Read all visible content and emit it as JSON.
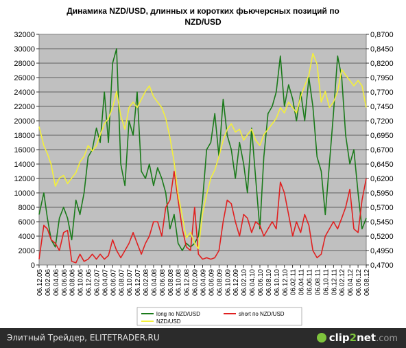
{
  "chart_data": {
    "type": "line",
    "title": "Динамика NZD/USD, длинных и коротких фьючерсных позиций по NZD/USD",
    "title_lines": [
      "Динамика NZD/USD, длинных и коротких фьючерсных позиций по",
      "NZD/USD"
    ],
    "plot_background": "#c0c0c0",
    "grid": true,
    "legend_placement": "bottom",
    "y_left": {
      "min": 0,
      "max": 32000,
      "ticks": [
        "0",
        "2000",
        "4000",
        "6000",
        "8000",
        "10000",
        "12000",
        "14000",
        "16000",
        "18000",
        "20000",
        "22000",
        "24000",
        "26000",
        "28000",
        "30000",
        "32000"
      ]
    },
    "y_right": {
      "min": 0.47,
      "max": 0.895,
      "ticks": [
        "0,4700",
        "0,4950",
        "0,5200",
        "0,5450",
        "0,5700",
        "0,5950",
        "0,6200",
        "0,6450",
        "0,6700",
        "0,6950",
        "0,7200",
        "0,7450",
        "0,7700",
        "0,7950",
        "0,8200",
        "0,8450",
        "0,8700"
      ]
    },
    "x_ticks": [
      "06.12.05",
      "06.02.06",
      "06.04.06",
      "06.06.06",
      "06.08.06",
      "06.10.06",
      "06.12.06",
      "06.02.07",
      "06.04.07",
      "06.06.07",
      "06.08.07",
      "06.10.07",
      "06.12.07",
      "06.02.08",
      "06.04.08",
      "06.06.08",
      "06.08.08",
      "06.10.08",
      "06.12.08",
      "06.02.09",
      "06.04.09",
      "06.06.09",
      "06.08.09",
      "06.10.09",
      "06.12.09",
      "06.02.10",
      "06.04.10",
      "06.06.10",
      "06.08.10",
      "06.10.10",
      "06.12.10",
      "06.02.11",
      "06.04.11",
      "06.06.11",
      "06.08.11",
      "06.10.11",
      "06.12.11",
      "06.02.12",
      "06.04.12",
      "06.06.12",
      "06.08.12"
    ],
    "x_range": [
      "2005-12-06",
      "2012-08-06"
    ],
    "series": [
      {
        "name": "long по NZD/USD",
        "axis": "left",
        "color": "#1a7a1a",
        "points": [
          [
            "2005-12-06",
            7000
          ],
          [
            "2006-01-10",
            10000
          ],
          [
            "2006-02-06",
            6500
          ],
          [
            "2006-03-06",
            3500
          ],
          [
            "2006-04-06",
            2500
          ],
          [
            "2006-05-06",
            6500
          ],
          [
            "2006-06-06",
            8000
          ],
          [
            "2006-07-06",
            6500
          ],
          [
            "2006-08-06",
            3500
          ],
          [
            "2006-09-06",
            9000
          ],
          [
            "2006-10-06",
            7000
          ],
          [
            "2006-11-06",
            10000
          ],
          [
            "2006-12-06",
            15000
          ],
          [
            "2007-01-06",
            16000
          ],
          [
            "2007-02-06",
            19000
          ],
          [
            "2007-03-06",
            17000
          ],
          [
            "2007-04-06",
            24000
          ],
          [
            "2007-05-06",
            17000
          ],
          [
            "2007-06-06",
            28000
          ],
          [
            "2007-07-06",
            30000
          ],
          [
            "2007-08-06",
            14000
          ],
          [
            "2007-09-06",
            11000
          ],
          [
            "2007-10-06",
            20000
          ],
          [
            "2007-11-06",
            18000
          ],
          [
            "2007-12-06",
            24000
          ],
          [
            "2008-01-06",
            13000
          ],
          [
            "2008-02-06",
            12000
          ],
          [
            "2008-03-06",
            14000
          ],
          [
            "2008-04-06",
            11000
          ],
          [
            "2008-05-06",
            13500
          ],
          [
            "2008-06-06",
            12000
          ],
          [
            "2008-07-06",
            10000
          ],
          [
            "2008-08-06",
            5000
          ],
          [
            "2008-09-06",
            7000
          ],
          [
            "2008-10-06",
            3000
          ],
          [
            "2008-11-06",
            2000
          ],
          [
            "2008-12-06",
            3000
          ],
          [
            "2009-01-06",
            2500
          ],
          [
            "2009-02-06",
            3000
          ],
          [
            "2009-03-06",
            4000
          ],
          [
            "2009-04-06",
            9000
          ],
          [
            "2009-05-06",
            16000
          ],
          [
            "2009-06-06",
            17000
          ],
          [
            "2009-07-06",
            21000
          ],
          [
            "2009-08-06",
            15000
          ],
          [
            "2009-09-06",
            23000
          ],
          [
            "2009-10-06",
            18000
          ],
          [
            "2009-11-06",
            16000
          ],
          [
            "2009-12-06",
            12000
          ],
          [
            "2010-01-06",
            17000
          ],
          [
            "2010-02-06",
            14000
          ],
          [
            "2010-03-06",
            10000
          ],
          [
            "2010-04-06",
            19000
          ],
          [
            "2010-05-06",
            12000
          ],
          [
            "2010-06-06",
            5000
          ],
          [
            "2010-07-06",
            15000
          ],
          [
            "2010-08-06",
            21000
          ],
          [
            "2010-09-06",
            22000
          ],
          [
            "2010-10-06",
            24000
          ],
          [
            "2010-11-06",
            29000
          ],
          [
            "2010-12-06",
            22000
          ],
          [
            "2011-01-06",
            25000
          ],
          [
            "2011-02-06",
            23000
          ],
          [
            "2011-03-06",
            20000
          ],
          [
            "2011-04-06",
            24000
          ],
          [
            "2011-05-06",
            20000
          ],
          [
            "2011-06-06",
            26000
          ],
          [
            "2011-07-06",
            22000
          ],
          [
            "2011-08-06",
            15000
          ],
          [
            "2011-09-06",
            13000
          ],
          [
            "2011-10-06",
            7000
          ],
          [
            "2011-11-06",
            14000
          ],
          [
            "2011-12-06",
            21000
          ],
          [
            "2012-01-06",
            29000
          ],
          [
            "2012-02-06",
            26000
          ],
          [
            "2012-03-06",
            18000
          ],
          [
            "2012-04-06",
            14000
          ],
          [
            "2012-05-06",
            16000
          ],
          [
            "2012-06-06",
            10000
          ],
          [
            "2012-07-06",
            5000
          ],
          [
            "2012-08-06",
            6500
          ]
        ]
      },
      {
        "name": "short по NZD/USD",
        "axis": "left",
        "color": "#e02020",
        "points": [
          [
            "2005-12-06",
            800
          ],
          [
            "2006-01-10",
            5500
          ],
          [
            "2006-02-06",
            5000
          ],
          [
            "2006-03-06",
            3500
          ],
          [
            "2006-04-06",
            3000
          ],
          [
            "2006-05-06",
            2000
          ],
          [
            "2006-06-06",
            4500
          ],
          [
            "2006-07-06",
            4800
          ],
          [
            "2006-08-06",
            500
          ],
          [
            "2006-09-06",
            300
          ],
          [
            "2006-10-06",
            1500
          ],
          [
            "2006-11-06",
            500
          ],
          [
            "2006-12-06",
            800
          ],
          [
            "2007-01-06",
            1500
          ],
          [
            "2007-02-06",
            800
          ],
          [
            "2007-03-06",
            1500
          ],
          [
            "2007-04-06",
            800
          ],
          [
            "2007-05-06",
            1300
          ],
          [
            "2007-06-06",
            3500
          ],
          [
            "2007-07-06",
            2000
          ],
          [
            "2007-08-06",
            1000
          ],
          [
            "2007-09-06",
            2000
          ],
          [
            "2007-10-06",
            3000
          ],
          [
            "2007-11-06",
            4500
          ],
          [
            "2007-12-06",
            3000
          ],
          [
            "2008-01-06",
            1500
          ],
          [
            "2008-02-06",
            3000
          ],
          [
            "2008-03-06",
            4000
          ],
          [
            "2008-04-06",
            6000
          ],
          [
            "2008-05-06",
            6000
          ],
          [
            "2008-06-06",
            4000
          ],
          [
            "2008-07-06",
            8000
          ],
          [
            "2008-08-06",
            9000
          ],
          [
            "2008-09-06",
            13000
          ],
          [
            "2008-10-06",
            9000
          ],
          [
            "2008-11-06",
            5000
          ],
          [
            "2008-12-06",
            2500
          ],
          [
            "2009-01-06",
            2000
          ],
          [
            "2009-02-06",
            8000
          ],
          [
            "2009-03-06",
            1500
          ],
          [
            "2009-04-06",
            800
          ],
          [
            "2009-05-06",
            1000
          ],
          [
            "2009-06-06",
            800
          ],
          [
            "2009-07-06",
            1000
          ],
          [
            "2009-08-06",
            2000
          ],
          [
            "2009-09-06",
            6000
          ],
          [
            "2009-10-06",
            9000
          ],
          [
            "2009-11-06",
            8500
          ],
          [
            "2009-12-06",
            6000
          ],
          [
            "2010-01-06",
            4000
          ],
          [
            "2010-02-06",
            7000
          ],
          [
            "2010-03-06",
            6500
          ],
          [
            "2010-04-06",
            4500
          ],
          [
            "2010-05-06",
            6000
          ],
          [
            "2010-06-06",
            5500
          ],
          [
            "2010-07-06",
            4000
          ],
          [
            "2010-08-06",
            5000
          ],
          [
            "2010-09-06",
            6000
          ],
          [
            "2010-10-06",
            5000
          ],
          [
            "2010-11-06",
            11500
          ],
          [
            "2010-12-06",
            10000
          ],
          [
            "2011-01-06",
            7000
          ],
          [
            "2011-02-06",
            4000
          ],
          [
            "2011-03-06",
            6000
          ],
          [
            "2011-04-06",
            4500
          ],
          [
            "2011-05-06",
            7000
          ],
          [
            "2011-06-06",
            5500
          ],
          [
            "2011-07-06",
            2000
          ],
          [
            "2011-08-06",
            1000
          ],
          [
            "2011-09-06",
            1500
          ],
          [
            "2011-10-06",
            4000
          ],
          [
            "2011-11-06",
            5000
          ],
          [
            "2011-12-06",
            6000
          ],
          [
            "2012-01-06",
            5000
          ],
          [
            "2012-02-06",
            6500
          ],
          [
            "2012-03-06",
            8000
          ],
          [
            "2012-04-06",
            10500
          ],
          [
            "2012-05-06",
            5000
          ],
          [
            "2012-06-06",
            4500
          ],
          [
            "2012-07-06",
            9000
          ],
          [
            "2012-08-06",
            12000
          ]
        ]
      },
      {
        "name": "NZD/USD",
        "axis": "right",
        "color": "#f4f03a",
        "points": [
          [
            "2005-12-06",
            0.725
          ],
          [
            "2006-01-10",
            0.69
          ],
          [
            "2006-02-06",
            0.675
          ],
          [
            "2006-03-06",
            0.655
          ],
          [
            "2006-04-06",
            0.615
          ],
          [
            "2006-05-06",
            0.63
          ],
          [
            "2006-06-06",
            0.635
          ],
          [
            "2006-07-06",
            0.62
          ],
          [
            "2006-08-06",
            0.63
          ],
          [
            "2006-09-06",
            0.64
          ],
          [
            "2006-10-06",
            0.66
          ],
          [
            "2006-11-06",
            0.67
          ],
          [
            "2006-12-06",
            0.69
          ],
          [
            "2007-01-06",
            0.68
          ],
          [
            "2007-02-06",
            0.69
          ],
          [
            "2007-03-06",
            0.71
          ],
          [
            "2007-04-06",
            0.73
          ],
          [
            "2007-05-06",
            0.74
          ],
          [
            "2007-06-06",
            0.76
          ],
          [
            "2007-07-06",
            0.79
          ],
          [
            "2007-08-06",
            0.745
          ],
          [
            "2007-09-06",
            0.72
          ],
          [
            "2007-10-06",
            0.76
          ],
          [
            "2007-11-06",
            0.77
          ],
          [
            "2007-12-06",
            0.76
          ],
          [
            "2008-01-06",
            0.775
          ],
          [
            "2008-02-06",
            0.79
          ],
          [
            "2008-03-06",
            0.8
          ],
          [
            "2008-04-06",
            0.78
          ],
          [
            "2008-05-06",
            0.77
          ],
          [
            "2008-06-06",
            0.76
          ],
          [
            "2008-07-06",
            0.74
          ],
          [
            "2008-08-06",
            0.705
          ],
          [
            "2008-09-06",
            0.66
          ],
          [
            "2008-10-06",
            0.6
          ],
          [
            "2008-11-06",
            0.56
          ],
          [
            "2008-12-06",
            0.52
          ],
          [
            "2009-01-06",
            0.53
          ],
          [
            "2009-02-06",
            0.51
          ],
          [
            "2009-03-06",
            0.5
          ],
          [
            "2009-04-06",
            0.565
          ],
          [
            "2009-05-06",
            0.6
          ],
          [
            "2009-06-06",
            0.63
          ],
          [
            "2009-07-06",
            0.645
          ],
          [
            "2009-08-06",
            0.67
          ],
          [
            "2009-09-06",
            0.7
          ],
          [
            "2009-10-06",
            0.72
          ],
          [
            "2009-11-06",
            0.73
          ],
          [
            "2009-12-06",
            0.715
          ],
          [
            "2010-01-06",
            0.72
          ],
          [
            "2010-02-06",
            0.7
          ],
          [
            "2010-03-06",
            0.71
          ],
          [
            "2010-04-06",
            0.72
          ],
          [
            "2010-05-06",
            0.7
          ],
          [
            "2010-06-06",
            0.69
          ],
          [
            "2010-07-06",
            0.71
          ],
          [
            "2010-08-06",
            0.72
          ],
          [
            "2010-09-06",
            0.73
          ],
          [
            "2010-10-06",
            0.74
          ],
          [
            "2010-11-06",
            0.76
          ],
          [
            "2010-12-06",
            0.75
          ],
          [
            "2011-01-06",
            0.77
          ],
          [
            "2011-02-06",
            0.76
          ],
          [
            "2011-03-06",
            0.75
          ],
          [
            "2011-04-06",
            0.78
          ],
          [
            "2011-05-06",
            0.8
          ],
          [
            "2011-06-06",
            0.82
          ],
          [
            "2011-07-06",
            0.86
          ],
          [
            "2011-08-06",
            0.84
          ],
          [
            "2011-09-06",
            0.77
          ],
          [
            "2011-10-06",
            0.79
          ],
          [
            "2011-11-06",
            0.76
          ],
          [
            "2011-12-06",
            0.77
          ],
          [
            "2012-01-06",
            0.79
          ],
          [
            "2012-02-06",
            0.83
          ],
          [
            "2012-03-06",
            0.82
          ],
          [
            "2012-04-06",
            0.81
          ],
          [
            "2012-05-06",
            0.8
          ],
          [
            "2012-06-06",
            0.81
          ],
          [
            "2012-07-06",
            0.8
          ],
          [
            "2012-08-06",
            0.76
          ]
        ]
      }
    ]
  },
  "footer": {
    "left_text": "Элитный Трейдер, ELITETRADER.RU",
    "logo_part1": "clip",
    "logo_part2": "2",
    "logo_part3": "net",
    "logo_part4": ".com"
  }
}
